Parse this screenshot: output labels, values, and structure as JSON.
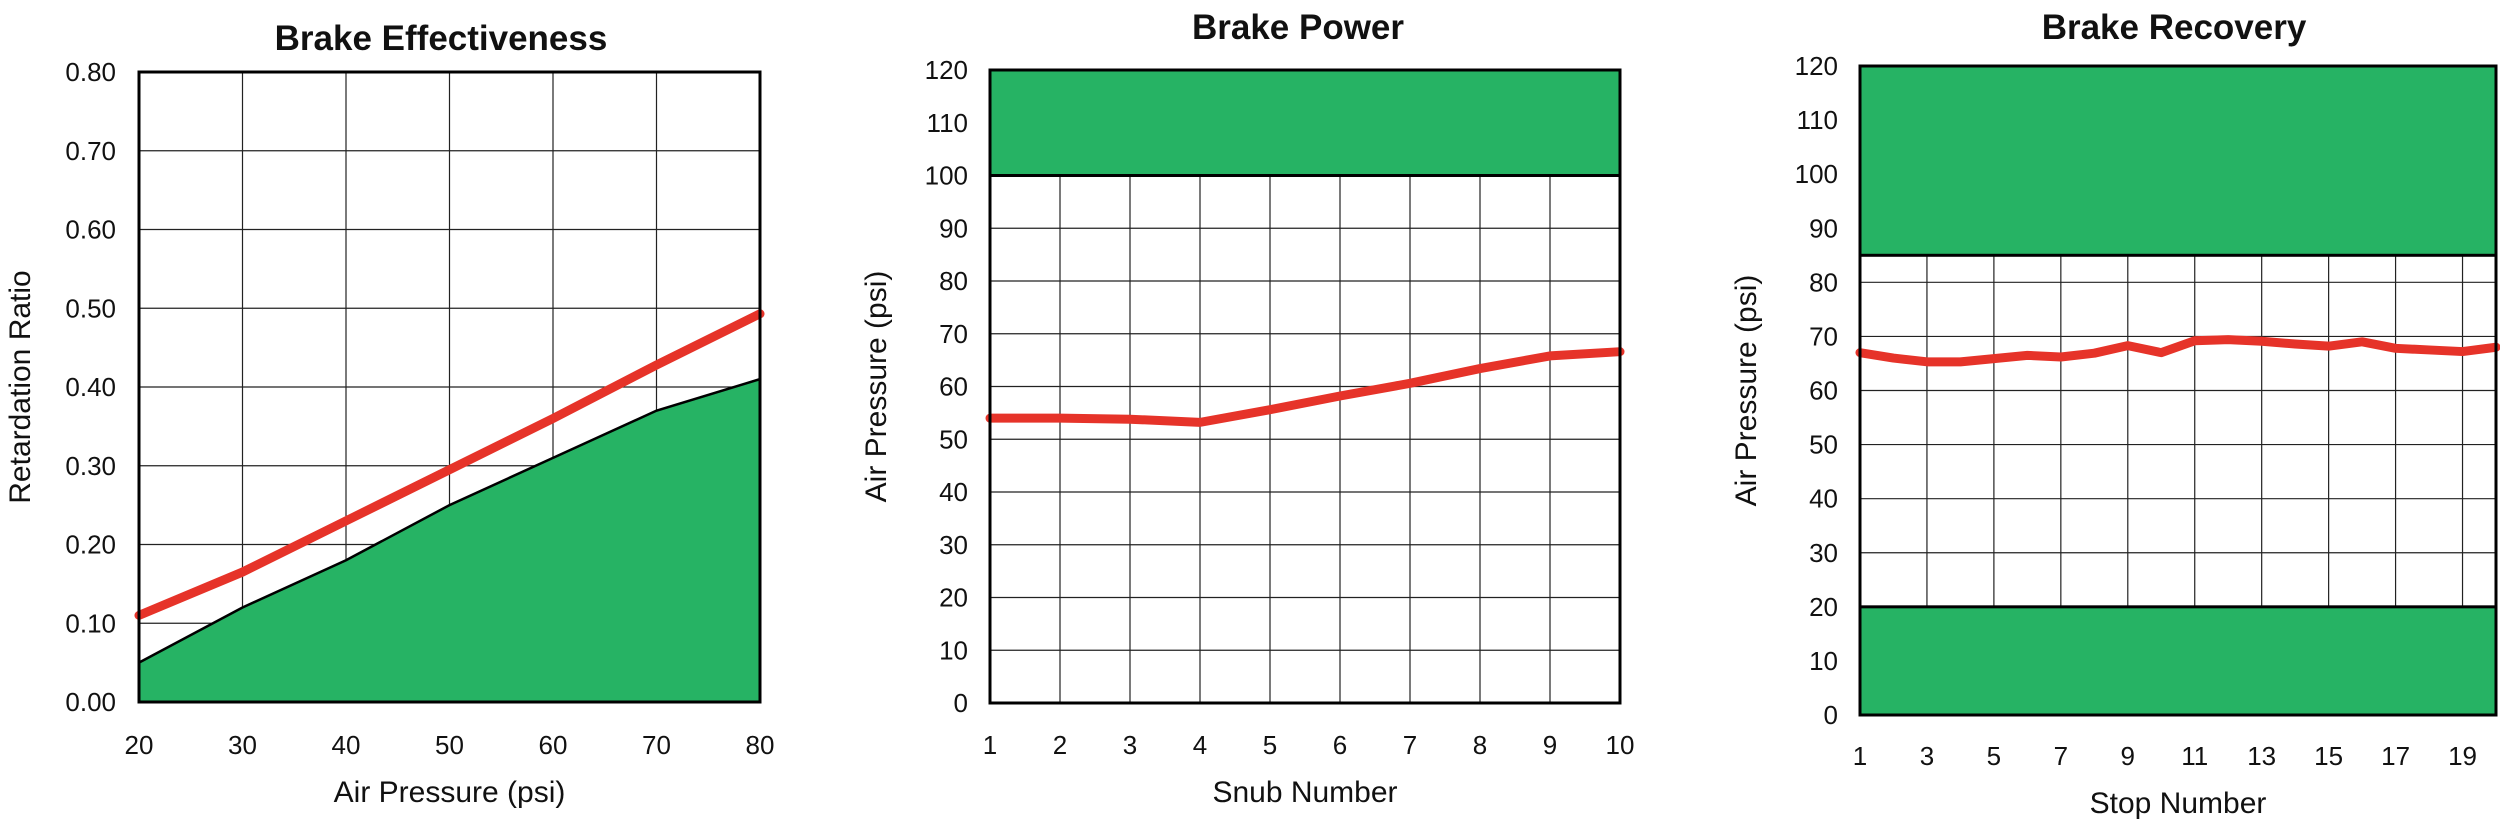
{
  "chart_data": [
    {
      "type": "line",
      "title": "Brake Effectiveness",
      "xlabel": "Air Pressure (psi)",
      "ylabel": "Retardation Ratio",
      "xlim": [
        20,
        80
      ],
      "ylim": [
        0,
        0.8
      ],
      "x_ticks": [
        20,
        30,
        40,
        50,
        60,
        70,
        80
      ],
      "y_ticks": [
        "0.00",
        "0.10",
        "0.20",
        "0.30",
        "0.40",
        "0.50",
        "0.60",
        "0.70",
        "0.80"
      ],
      "series": [
        {
          "x": [
            20,
            30,
            40,
            50,
            60,
            70,
            80
          ],
          "y": [
            0.11,
            0.165,
            0.23,
            0.295,
            0.36,
            0.428,
            0.493
          ],
          "color": "#e63329"
        }
      ],
      "area": {
        "x": [
          20,
          30,
          40,
          50,
          60,
          70,
          80
        ],
        "y": [
          0.05,
          0.12,
          0.18,
          0.25,
          0.31,
          0.37,
          0.41
        ],
        "color": "#26b364"
      },
      "grid": true
    },
    {
      "type": "line",
      "title": "Brake Power",
      "xlabel": "Snub Number",
      "ylabel": "Air Pressure (psi)",
      "xlim": [
        1,
        10
      ],
      "ylim": [
        0,
        120
      ],
      "x_ticks": [
        1,
        2,
        3,
        4,
        5,
        6,
        7,
        8,
        9,
        10
      ],
      "y_ticks": [
        0,
        10,
        20,
        30,
        40,
        50,
        60,
        70,
        80,
        90,
        100,
        110,
        120
      ],
      "series": [
        {
          "x": [
            1,
            2,
            3,
            4,
            5,
            6,
            7,
            8,
            9,
            10
          ],
          "y": [
            54,
            54,
            53.8,
            53.2,
            55.6,
            58.2,
            60.6,
            63.4,
            65.8,
            66.6
          ],
          "color": "#e63329"
        }
      ],
      "bands": [
        {
          "from": 100,
          "to": 120,
          "color": "#26b364"
        }
      ],
      "grid": true
    },
    {
      "type": "line",
      "title": "Brake Recovery",
      "xlabel": "Stop Number",
      "ylabel": "Air Pressure (psi)",
      "xlim": [
        1,
        20
      ],
      "ylim": [
        0,
        120
      ],
      "x_ticks": [
        1,
        3,
        5,
        7,
        9,
        11,
        13,
        15,
        17,
        19
      ],
      "y_ticks": [
        0,
        10,
        20,
        30,
        40,
        50,
        60,
        70,
        80,
        90,
        100,
        110,
        120
      ],
      "series": [
        {
          "x": [
            1,
            2,
            3,
            4,
            5,
            6,
            7,
            8,
            9,
            10,
            11,
            12,
            13,
            14,
            15,
            16,
            17,
            18,
            19,
            20
          ],
          "y": [
            67,
            66,
            65.3,
            65.3,
            65.9,
            66.5,
            66.2,
            66.9,
            68.3,
            67,
            69.2,
            69.4,
            69.1,
            68.6,
            68.2,
            69,
            67.8,
            67.5,
            67.2,
            68
          ],
          "color": "#e63329"
        }
      ],
      "bands": [
        {
          "from": 85,
          "to": 120,
          "color": "#26b364"
        },
        {
          "from": 0,
          "to": 20,
          "color": "#26b364"
        }
      ],
      "grid": true
    }
  ]
}
